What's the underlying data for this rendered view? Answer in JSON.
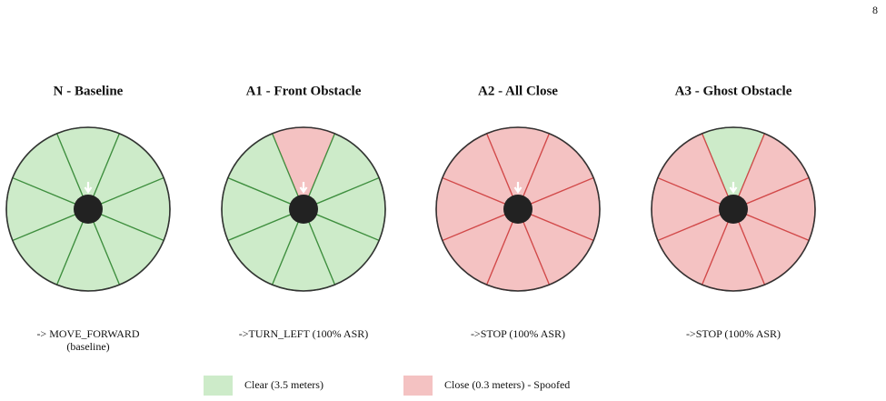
{
  "page_number": "8",
  "legend": [
    {
      "label": "Clear (3.5 meters)",
      "color": "#cdebc9",
      "edge": "#3f8f3f"
    },
    {
      "label": "Close (0.3 meters) - Spoofed",
      "color": "#f4c2c2",
      "edge": "#d24a4a"
    }
  ],
  "panels": [
    {
      "title": "N - Baseline",
      "sectors": [
        0,
        0,
        0,
        0,
        0,
        0,
        0,
        0
      ],
      "caption": [
        "-> MOVE_FORWARD",
        "(baseline)"
      ]
    },
    {
      "title": "A1 - Front Obstacle",
      "sectors": [
        1,
        0,
        0,
        0,
        0,
        0,
        0,
        0
      ],
      "caption": [
        "->TURN_LEFT (100% ASR)"
      ]
    },
    {
      "title": "A2 - All Close",
      "sectors": [
        1,
        1,
        1,
        1,
        1,
        1,
        1,
        1
      ],
      "caption": [
        "->STOP (100% ASR)"
      ]
    },
    {
      "title": "A3 - Ghost Obstacle",
      "sectors": [
        0,
        1,
        1,
        1,
        1,
        1,
        1,
        1
      ],
      "caption": [
        "->STOP (100% ASR)"
      ]
    }
  ]
}
